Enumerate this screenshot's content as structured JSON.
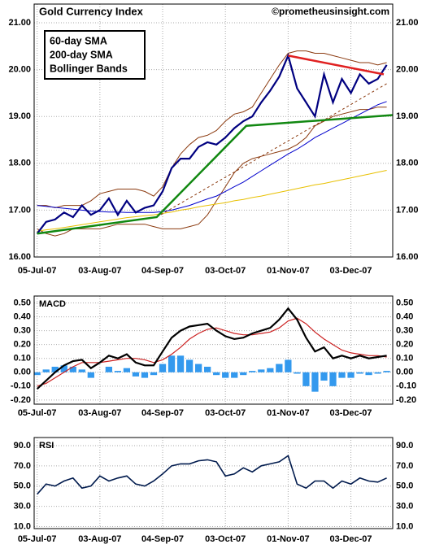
{
  "chart_data": [
    {
      "type": "line",
      "title": "Gold Currency Index",
      "credit": "©prometheusinsight.com",
      "legend": "top-left",
      "grid": true,
      "x": [
        0,
        3,
        6,
        9,
        12,
        15,
        18,
        21,
        24,
        27,
        30,
        33,
        36,
        39,
        42,
        45,
        48,
        51,
        54,
        57,
        60,
        63,
        66,
        69,
        72,
        75,
        78,
        81,
        84,
        87,
        90,
        93,
        96,
        99,
        102,
        105,
        108,
        111,
        114,
        117
      ],
      "xlim": [
        -1,
        119
      ],
      "ylim": [
        16,
        21.4
      ],
      "xticks": [
        {
          "value": 0,
          "label": "05-Jul-07"
        },
        {
          "value": 21,
          "label": "03-Aug-07"
        },
        {
          "value": 42,
          "label": "04-Sep-07"
        },
        {
          "value": 63,
          "label": "03-Oct-07"
        },
        {
          "value": 84,
          "label": "01-Nov-07"
        },
        {
          "value": 105,
          "label": "03-Dec-07"
        }
      ],
      "yticks": [
        {
          "value": 16,
          "label": "16.00"
        },
        {
          "value": 17,
          "label": "17.00"
        },
        {
          "value": 18,
          "label": "18.00"
        },
        {
          "value": 19,
          "label": "19.00"
        },
        {
          "value": 20,
          "label": "20.00"
        },
        {
          "value": 21,
          "label": "21.00"
        }
      ],
      "series": [
        {
          "style": "band",
          "name": "Bollinger Bands",
          "color": "#8b3a0f",
          "upper": [
            17.1,
            17.1,
            17.05,
            17.1,
            17.1,
            17.1,
            17.2,
            17.35,
            17.4,
            17.45,
            17.45,
            17.45,
            17.4,
            17.3,
            17.5,
            17.9,
            18.2,
            18.4,
            18.55,
            18.6,
            18.7,
            18.9,
            19.05,
            19.1,
            19.2,
            19.5,
            19.8,
            20.1,
            20.35,
            20.4,
            20.4,
            20.35,
            20.35,
            20.3,
            20.25,
            20.2,
            20.15,
            20.15,
            20.1,
            20.15
          ],
          "lower": [
            16.6,
            16.5,
            16.45,
            16.5,
            16.6,
            16.6,
            16.6,
            16.6,
            16.65,
            16.7,
            16.7,
            16.7,
            16.7,
            16.65,
            16.6,
            16.6,
            16.6,
            16.65,
            16.7,
            16.9,
            17.2,
            17.5,
            17.8,
            18.0,
            18.1,
            18.15,
            18.2,
            18.25,
            18.3,
            18.4,
            18.55,
            18.8,
            18.9,
            19.0,
            19.05,
            19.1,
            19.15,
            19.15,
            19.2,
            19.2
          ]
        },
        {
          "style": "line",
          "name": "200-day SMA",
          "color": "#e8c000",
          "values": [
            16.55,
            16.58,
            16.6,
            16.63,
            16.66,
            16.69,
            16.72,
            16.75,
            16.78,
            16.81,
            16.84,
            16.86,
            16.88,
            16.9,
            16.93,
            16.96,
            17.0,
            17.03,
            17.07,
            17.1,
            17.13,
            17.16,
            17.2,
            17.23,
            17.27,
            17.3,
            17.34,
            17.38,
            17.42,
            17.46,
            17.5,
            17.54,
            17.57,
            17.61,
            17.65,
            17.69,
            17.73,
            17.77,
            17.81,
            17.85
          ]
        },
        {
          "style": "line",
          "name": "60-day SMA",
          "color": "#0000cc",
          "values": [
            17.1,
            17.08,
            17.06,
            17.04,
            17.02,
            17.0,
            16.98,
            16.97,
            16.96,
            16.96,
            16.95,
            16.95,
            16.95,
            16.95,
            16.97,
            17.0,
            17.05,
            17.1,
            17.17,
            17.24,
            17.3,
            17.4,
            17.5,
            17.6,
            17.72,
            17.84,
            17.96,
            18.08,
            18.2,
            18.3,
            18.42,
            18.55,
            18.65,
            18.75,
            18.85,
            18.95,
            19.05,
            19.15,
            19.25,
            19.32
          ]
        },
        {
          "style": "line",
          "color": "#000080",
          "width": 2.2,
          "values": [
            16.5,
            16.75,
            16.8,
            16.95,
            16.85,
            17.1,
            16.9,
            17.0,
            17.25,
            16.9,
            17.2,
            16.95,
            17.05,
            17.1,
            17.4,
            17.9,
            18.1,
            18.1,
            18.35,
            18.45,
            18.4,
            18.55,
            18.75,
            18.9,
            19.0,
            19.3,
            19.55,
            19.85,
            20.3,
            19.6,
            19.3,
            19.0,
            19.9,
            19.3,
            19.8,
            19.5,
            19.9,
            19.7,
            19.8,
            20.1
          ]
        },
        {
          "style": "dashed",
          "color": "#8b3a0f",
          "x": [
            40,
            117
          ],
          "values": [
            16.85,
            19.7
          ]
        },
        {
          "style": "line",
          "color": "#e02020",
          "width": 2.5,
          "x": [
            84,
            116
          ],
          "values": [
            20.3,
            19.9
          ]
        },
        {
          "style": "line",
          "color": "#118811",
          "width": 2.5,
          "x": [
            0,
            40,
            70,
            119
          ],
          "values": [
            16.5,
            16.85,
            18.8,
            19.03
          ]
        }
      ]
    },
    {
      "type": "line",
      "title": "MACD",
      "grid": true,
      "x": [
        0,
        3,
        6,
        9,
        12,
        15,
        18,
        21,
        24,
        27,
        30,
        33,
        36,
        39,
        42,
        45,
        48,
        51,
        54,
        57,
        60,
        63,
        66,
        69,
        72,
        75,
        78,
        81,
        84,
        87,
        90,
        93,
        96,
        99,
        102,
        105,
        108,
        111,
        114,
        117
      ],
      "xlim": [
        -1,
        119
      ],
      "ylim": [
        -0.23,
        0.55
      ],
      "xticks": [
        {
          "value": 0,
          "label": "05-Jul-07"
        },
        {
          "value": 21,
          "label": "03-Aug-07"
        },
        {
          "value": 42,
          "label": "04-Sep-07"
        },
        {
          "value": 63,
          "label": "03-Oct-07"
        },
        {
          "value": 84,
          "label": "01-Nov-07"
        },
        {
          "value": 105,
          "label": "03-Dec-07"
        }
      ],
      "yticks": [
        {
          "value": -0.2,
          "label": "-0.20"
        },
        {
          "value": -0.1,
          "label": "-0.10"
        },
        {
          "value": 0,
          "label": "0.00"
        },
        {
          "value": 0.1,
          "label": "0.10"
        },
        {
          "value": 0.2,
          "label": "0.20"
        },
        {
          "value": 0.3,
          "label": "0.30"
        },
        {
          "value": 0.4,
          "label": "0.40"
        },
        {
          "value": 0.5,
          "label": "0.50"
        }
      ],
      "series": [
        {
          "style": "bar",
          "color": "#3399ee",
          "values": [
            -0.02,
            0.02,
            0.04,
            0.05,
            0.04,
            0.02,
            -0.04,
            0,
            0.04,
            0.01,
            0.03,
            -0.03,
            -0.04,
            -0.02,
            0.06,
            0.12,
            0.12,
            0.09,
            0.06,
            0.04,
            -0.02,
            -0.04,
            -0.04,
            -0.02,
            0.01,
            0.02,
            0.03,
            0.06,
            0.09,
            -0.01,
            -0.1,
            -0.14,
            -0.06,
            -0.1,
            -0.04,
            -0.04,
            -0.01,
            -0.02,
            -0.01,
            0.01
          ]
        },
        {
          "style": "line",
          "color": "#cc2222",
          "width": 1.2,
          "values": [
            -0.1,
            -0.08,
            -0.04,
            0.0,
            0.04,
            0.07,
            0.07,
            0.07,
            0.08,
            0.09,
            0.1,
            0.1,
            0.09,
            0.07,
            0.09,
            0.13,
            0.18,
            0.24,
            0.28,
            0.31,
            0.32,
            0.3,
            0.28,
            0.27,
            0.27,
            0.28,
            0.29,
            0.32,
            0.37,
            0.39,
            0.35,
            0.29,
            0.24,
            0.2,
            0.16,
            0.14,
            0.13,
            0.12,
            0.12,
            0.11
          ]
        },
        {
          "style": "line",
          "color": "#000000",
          "width": 2.2,
          "values": [
            -0.12,
            -0.06,
            0.0,
            0.05,
            0.08,
            0.09,
            0.03,
            0.07,
            0.12,
            0.1,
            0.13,
            0.07,
            0.05,
            0.05,
            0.15,
            0.25,
            0.3,
            0.33,
            0.34,
            0.35,
            0.3,
            0.26,
            0.24,
            0.25,
            0.28,
            0.3,
            0.32,
            0.38,
            0.46,
            0.38,
            0.25,
            0.15,
            0.18,
            0.1,
            0.12,
            0.1,
            0.12,
            0.1,
            0.11,
            0.12
          ]
        }
      ]
    },
    {
      "type": "line",
      "title": "RSI",
      "grid": true,
      "x": [
        0,
        3,
        6,
        9,
        12,
        15,
        18,
        21,
        24,
        27,
        30,
        33,
        36,
        39,
        42,
        45,
        48,
        51,
        54,
        57,
        60,
        63,
        66,
        69,
        72,
        75,
        78,
        81,
        84,
        87,
        90,
        93,
        96,
        99,
        102,
        105,
        108,
        111,
        114,
        117
      ],
      "xlim": [
        -1,
        119
      ],
      "ylim": [
        8,
        98
      ],
      "xticks": [
        {
          "value": 0,
          "label": "05-Jul-07"
        },
        {
          "value": 21,
          "label": "03-Aug-07"
        },
        {
          "value": 42,
          "label": "04-Sep-07"
        },
        {
          "value": 63,
          "label": "03-Oct-07"
        },
        {
          "value": 84,
          "label": "01-Nov-07"
        },
        {
          "value": 105,
          "label": "03-Dec-07"
        }
      ],
      "yticks": [
        {
          "value": 10,
          "label": "10.0"
        },
        {
          "value": 30,
          "label": "30.0"
        },
        {
          "value": 50,
          "label": "50.0"
        },
        {
          "value": 70,
          "label": "70.0"
        },
        {
          "value": 90,
          "label": "90.0"
        }
      ],
      "series": [
        {
          "style": "line",
          "color": "#001a4d",
          "width": 1.6,
          "values": [
            42,
            52,
            50,
            55,
            58,
            48,
            50,
            60,
            55,
            58,
            60,
            52,
            50,
            55,
            62,
            70,
            72,
            72,
            75,
            76,
            74,
            60,
            62,
            68,
            64,
            70,
            72,
            74,
            80,
            52,
            48,
            55,
            55,
            48,
            55,
            52,
            58,
            55,
            54,
            58
          ]
        }
      ]
    }
  ]
}
